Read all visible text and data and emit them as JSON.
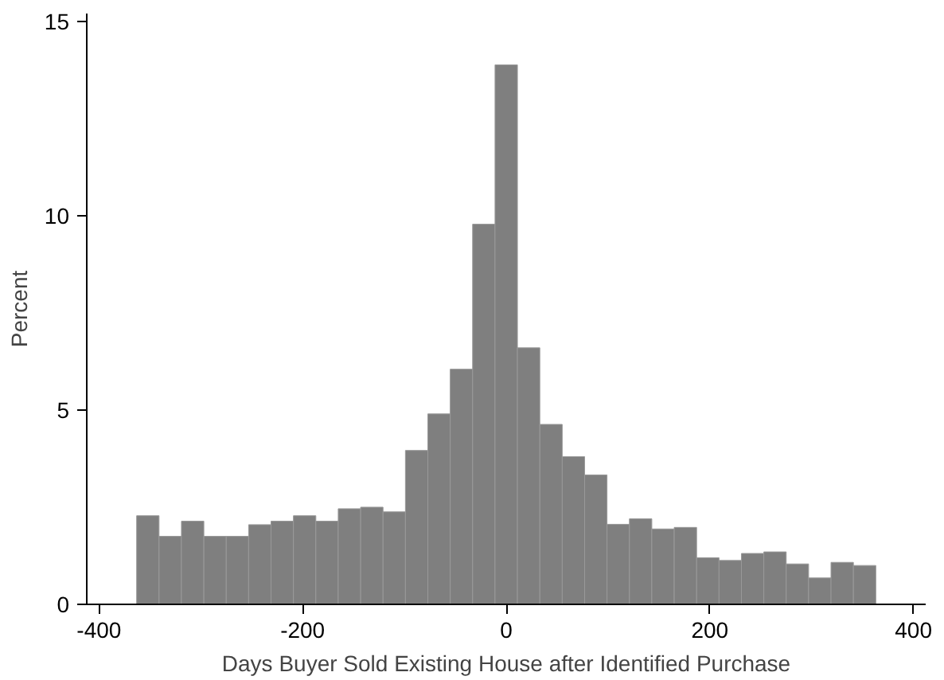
{
  "chart_data": {
    "type": "histogram",
    "xlabel": "Days Buyer Sold Existing House after Identified Purchase",
    "ylabel": "Percent",
    "bins": [
      -363,
      -341,
      -319,
      -297,
      -275,
      -253,
      -231,
      -209,
      -187,
      -165,
      -143,
      -121,
      -99,
      -77,
      -55,
      -33,
      -11,
      11,
      33,
      55,
      77,
      99,
      121,
      143,
      165,
      187,
      209,
      231,
      253,
      275,
      297,
      319,
      341,
      363
    ],
    "values": [
      2.28,
      1.75,
      2.14,
      1.75,
      1.75,
      2.05,
      2.14,
      2.28,
      2.14,
      2.46,
      2.5,
      2.38,
      3.96,
      4.9,
      6.05,
      9.78,
      13.88,
      6.6,
      4.63,
      3.8,
      3.33,
      2.06,
      2.2,
      1.94,
      1.98,
      1.2,
      1.13,
      1.31,
      1.35,
      1.04,
      0.68,
      1.08,
      1.0
    ],
    "color": "#7f7f7f",
    "xlim": [
      -412,
      412
    ],
    "xticks": [
      -400,
      -200,
      0,
      200,
      400
    ],
    "ylim": [
      0,
      15.2
    ],
    "yticks": [
      0,
      5,
      10,
      15
    ]
  }
}
